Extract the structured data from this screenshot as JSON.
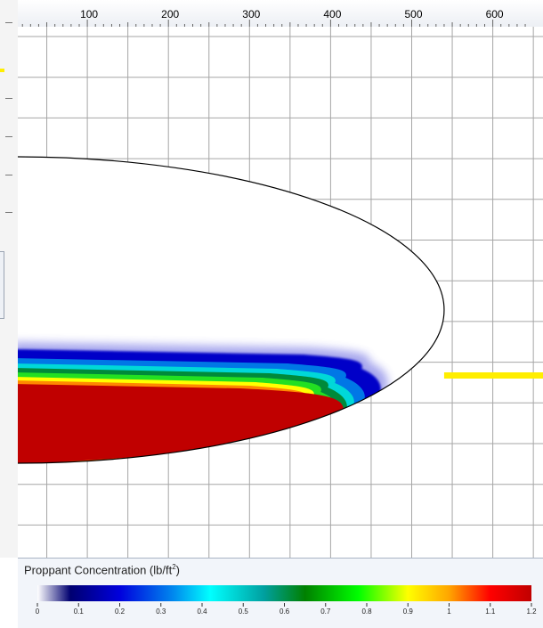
{
  "legend": {
    "title": "Proppant Concentration (lb/ft",
    "title_sup": "2",
    "title_close": ")",
    "ticks": [
      "0",
      "0.1",
      "0.2",
      "0.3",
      "0.4",
      "0.5",
      "0.6",
      "0.7",
      "0.8",
      "0.9",
      "1",
      "1.1",
      "1.2"
    ],
    "colorstops": [
      {
        "value": 0.0,
        "color": "#ffffff"
      },
      {
        "value": 0.08,
        "color": "#000070"
      },
      {
        "value": 0.2,
        "color": "#0000dd"
      },
      {
        "value": 0.33,
        "color": "#0088ee"
      },
      {
        "value": 0.42,
        "color": "#00ffff"
      },
      {
        "value": 0.55,
        "color": "#00a0a0"
      },
      {
        "value": 0.65,
        "color": "#008000"
      },
      {
        "value": 0.78,
        "color": "#00ff00"
      },
      {
        "value": 0.9,
        "color": "#ffff00"
      },
      {
        "value": 1.0,
        "color": "#ffa500"
      },
      {
        "value": 1.1,
        "color": "#ff0000"
      },
      {
        "value": 1.2,
        "color": "#c00000"
      }
    ]
  },
  "chart_data": {
    "type": "heatmap",
    "title": "",
    "xlabel": "",
    "ylabel": "",
    "x_ticks": [
      100,
      200,
      300,
      400,
      500,
      600
    ],
    "xlim": [
      0,
      650
    ],
    "grid": true,
    "fracture_half_length": 540,
    "proppant_pack_extent": 470,
    "colorbar": {
      "label": "Proppant Concentration (lb/ft²)",
      "min": 0,
      "max": 1.2
    }
  },
  "colors": {
    "background": "#ffffff",
    "grid": "#a6a6a6",
    "outline": "#000000",
    "wellbore": "#ffee00",
    "panel": "#f2f5fa"
  }
}
